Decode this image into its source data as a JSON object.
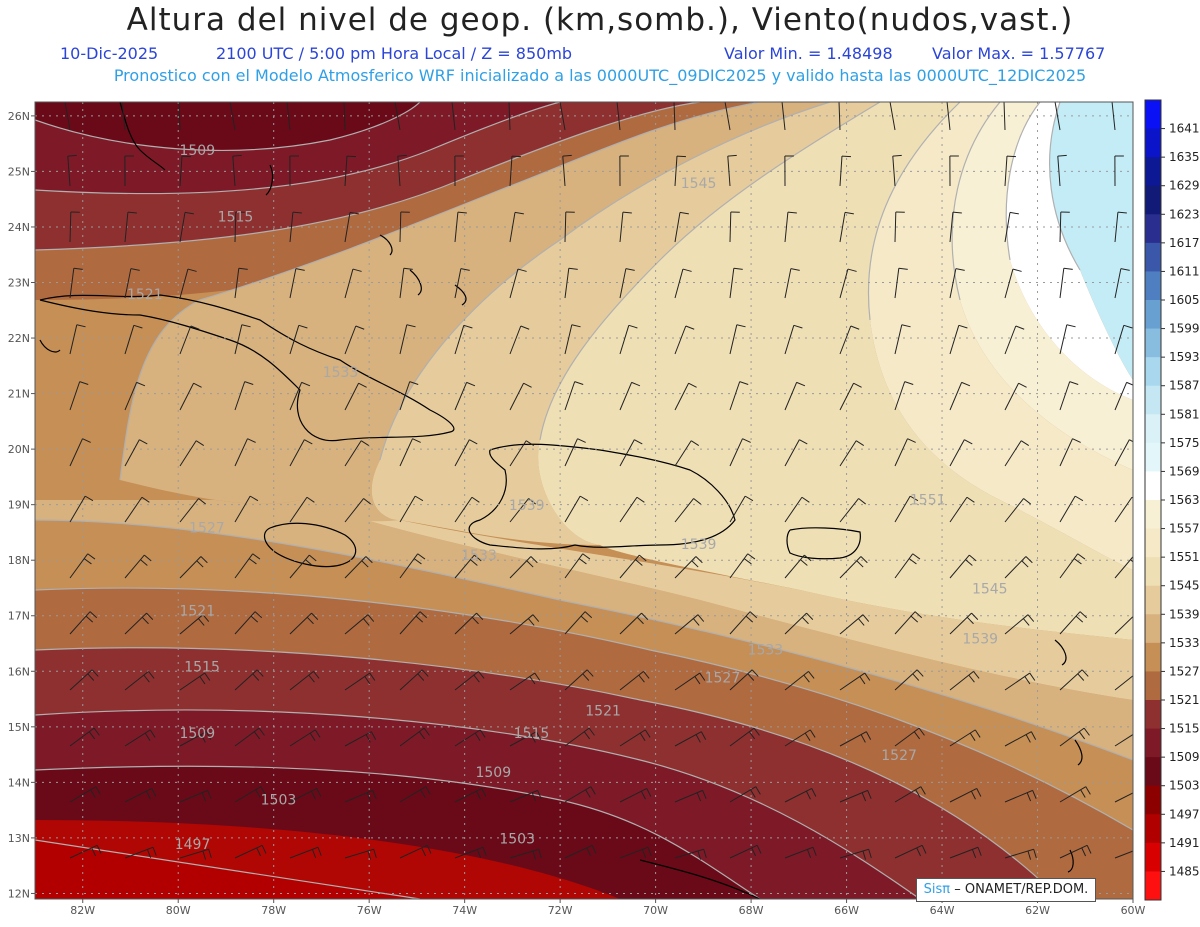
{
  "header": {
    "title": "Altura del nivel de geop. (km,somb.), Viento(nudos,vast.)",
    "date": "10-Dic-2025",
    "time": "2100 UTC / 5:00 pm Hora Local / Z = 850mb",
    "min": "Valor Min. = 1.48498",
    "max": "Valor Max. = 1.57767",
    "model_line": "Pronostico con el Modelo Atmosferico WRF inicializado a las 0000UTC_09DIC2025 y valido hasta las  0000UTC_12DIC2025"
  },
  "credit": {
    "logo": "Sisπ",
    "text": "– ONAMET/REP.DOM."
  },
  "lat_labels": [
    "26N",
    "25N",
    "24N",
    "23N",
    "22N",
    "21N",
    "20N",
    "19N",
    "18N",
    "17N",
    "16N",
    "15N",
    "14N",
    "13N",
    "12N"
  ],
  "lon_labels": [
    "82W",
    "80W",
    "78W",
    "76W",
    "74W",
    "72W",
    "70W",
    "68W",
    "66W",
    "64W",
    "62W",
    "60W"
  ],
  "legend": {
    "levels": [
      "1641",
      "1635",
      "1629",
      "1623",
      "1617",
      "1611",
      "1605",
      "1599",
      "1593",
      "1587",
      "1581",
      "1575",
      "1569",
      "1563",
      "1557",
      "1551",
      "1545",
      "1539",
      "1533",
      "1527",
      "1521",
      "1515",
      "1509",
      "1503",
      "1497",
      "1491",
      "1485"
    ],
    "colors": [
      "#0a12f5",
      "#0b14c8",
      "#0c1894",
      "#121a78",
      "#2a2f8f",
      "#3a57aa",
      "#4f7fc0",
      "#69a0d2",
      "#88bde0",
      "#a8d7ee",
      "#c4e7f3",
      "#daf1f7",
      "#e3f6fa",
      "#ffffff",
      "#f8f0d4",
      "#f5e9c8",
      "#efdfb5",
      "#e6cc9c",
      "#d7b17e",
      "#c58f56",
      "#b06a40",
      "#8f3030",
      "#7e1a28",
      "#6a0a18",
      "#8c0000",
      "#b00000",
      "#d80000",
      "#ff1010"
    ]
  },
  "contour_labels": [
    {
      "text": "1509",
      "lon": -79.6,
      "lat": 25.3
    },
    {
      "text": "1515",
      "lon": -78.8,
      "lat": 24.1
    },
    {
      "text": "1521",
      "lon": -80.7,
      "lat": 22.7
    },
    {
      "text": "1533",
      "lon": -76.6,
      "lat": 21.3
    },
    {
      "text": "1545",
      "lon": -69.1,
      "lat": 24.7
    },
    {
      "text": "1551",
      "lon": -64.3,
      "lat": 19.0
    },
    {
      "text": "1539",
      "lon": -72.7,
      "lat": 18.9
    },
    {
      "text": "1539",
      "lon": -69.1,
      "lat": 18.2
    },
    {
      "text": "1533",
      "lon": -73.7,
      "lat": 18.0
    },
    {
      "text": "1527",
      "lon": -79.4,
      "lat": 18.5
    },
    {
      "text": "1521",
      "lon": -79.6,
      "lat": 17.0
    },
    {
      "text": "1515",
      "lon": -79.5,
      "lat": 16.0
    },
    {
      "text": "1509",
      "lon": -79.6,
      "lat": 14.8
    },
    {
      "text": "1515",
      "lon": -72.6,
      "lat": 14.8
    },
    {
      "text": "1509",
      "lon": -73.4,
      "lat": 14.1
    },
    {
      "text": "1503",
      "lon": -77.9,
      "lat": 13.6
    },
    {
      "text": "1503",
      "lon": -72.9,
      "lat": 12.9
    },
    {
      "text": "1497",
      "lon": -79.7,
      "lat": 12.8
    },
    {
      "text": "1521",
      "lon": -71.1,
      "lat": 15.2
    },
    {
      "text": "1527",
      "lon": -68.6,
      "lat": 15.8
    },
    {
      "text": "1533",
      "lon": -67.7,
      "lat": 16.3
    },
    {
      "text": "1545",
      "lon": -63.0,
      "lat": 17.4
    },
    {
      "text": "1539",
      "lon": -63.2,
      "lat": 16.5
    },
    {
      "text": "1527",
      "lon": -64.9,
      "lat": 14.4
    }
  ],
  "colors": {
    "grid": "#9a9a9a",
    "contour": "#b0b0b0",
    "coast": "#000000",
    "barb": "#222222"
  }
}
